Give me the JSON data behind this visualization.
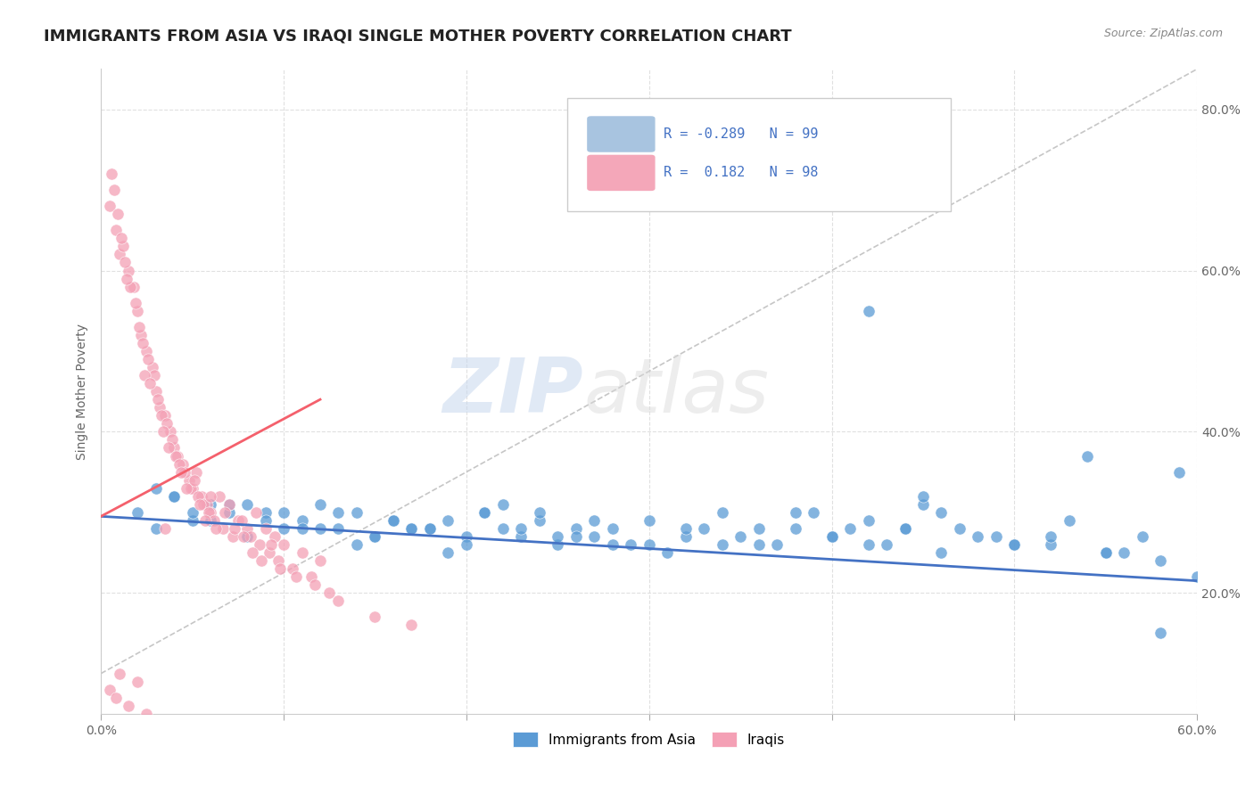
{
  "title": "IMMIGRANTS FROM ASIA VS IRAQI SINGLE MOTHER POVERTY CORRELATION CHART",
  "source_text": "Source: ZipAtlas.com",
  "ylabel": "Single Mother Poverty",
  "xlim": [
    0.0,
    0.6
  ],
  "ylim": [
    0.05,
    0.85
  ],
  "yticks": [
    0.2,
    0.4,
    0.6,
    0.8
  ],
  "yticklabels": [
    "20.0%",
    "40.0%",
    "60.0%",
    "80.0%"
  ],
  "blue_scatter_x": [
    0.02,
    0.03,
    0.04,
    0.05,
    0.06,
    0.07,
    0.08,
    0.09,
    0.1,
    0.11,
    0.12,
    0.13,
    0.14,
    0.15,
    0.16,
    0.17,
    0.18,
    0.19,
    0.2,
    0.21,
    0.22,
    0.23,
    0.24,
    0.25,
    0.26,
    0.27,
    0.28,
    0.3,
    0.32,
    0.34,
    0.36,
    0.38,
    0.4,
    0.42,
    0.44,
    0.46,
    0.48,
    0.5,
    0.52,
    0.55,
    0.57,
    0.59,
    0.04,
    0.06,
    0.08,
    0.1,
    0.12,
    0.14,
    0.16,
    0.18,
    0.2,
    0.22,
    0.24,
    0.26,
    0.28,
    0.3,
    0.32,
    0.34,
    0.36,
    0.38,
    0.4,
    0.42,
    0.44,
    0.46,
    0.5,
    0.52,
    0.55,
    0.58,
    0.03,
    0.05,
    0.07,
    0.09,
    0.11,
    0.13,
    0.15,
    0.17,
    0.19,
    0.21,
    0.23,
    0.25,
    0.27,
    0.29,
    0.31,
    0.33,
    0.35,
    0.37,
    0.39,
    0.41,
    0.43,
    0.45,
    0.47,
    0.49,
    0.53,
    0.56,
    0.42,
    0.54,
    0.58,
    0.45,
    0.6
  ],
  "blue_scatter_y": [
    0.3,
    0.28,
    0.32,
    0.29,
    0.31,
    0.3,
    0.27,
    0.3,
    0.28,
    0.29,
    0.31,
    0.28,
    0.3,
    0.27,
    0.29,
    0.28,
    0.28,
    0.29,
    0.27,
    0.3,
    0.28,
    0.27,
    0.29,
    0.26,
    0.28,
    0.27,
    0.28,
    0.26,
    0.27,
    0.26,
    0.28,
    0.3,
    0.27,
    0.26,
    0.28,
    0.25,
    0.27,
    0.26,
    0.26,
    0.25,
    0.27,
    0.35,
    0.32,
    0.29,
    0.31,
    0.3,
    0.28,
    0.26,
    0.29,
    0.28,
    0.26,
    0.31,
    0.3,
    0.27,
    0.26,
    0.29,
    0.28,
    0.3,
    0.26,
    0.28,
    0.27,
    0.29,
    0.28,
    0.3,
    0.26,
    0.27,
    0.25,
    0.24,
    0.33,
    0.3,
    0.31,
    0.29,
    0.28,
    0.3,
    0.27,
    0.28,
    0.25,
    0.3,
    0.28,
    0.27,
    0.29,
    0.26,
    0.25,
    0.28,
    0.27,
    0.26,
    0.3,
    0.28,
    0.26,
    0.31,
    0.28,
    0.27,
    0.29,
    0.25,
    0.55,
    0.37,
    0.15,
    0.32,
    0.22
  ],
  "pink_scatter_x": [
    0.005,
    0.008,
    0.01,
    0.012,
    0.015,
    0.018,
    0.02,
    0.022,
    0.025,
    0.028,
    0.03,
    0.032,
    0.035,
    0.038,
    0.04,
    0.042,
    0.045,
    0.048,
    0.05,
    0.052,
    0.055,
    0.058,
    0.06,
    0.065,
    0.07,
    0.075,
    0.08,
    0.085,
    0.09,
    0.095,
    0.1,
    0.11,
    0.12,
    0.007,
    0.009,
    0.011,
    0.013,
    0.016,
    0.019,
    0.021,
    0.023,
    0.026,
    0.029,
    0.031,
    0.033,
    0.036,
    0.039,
    0.041,
    0.043,
    0.046,
    0.049,
    0.051,
    0.053,
    0.056,
    0.059,
    0.062,
    0.067,
    0.072,
    0.077,
    0.082,
    0.087,
    0.092,
    0.097,
    0.105,
    0.115,
    0.006,
    0.014,
    0.024,
    0.027,
    0.034,
    0.037,
    0.044,
    0.047,
    0.054,
    0.057,
    0.063,
    0.068,
    0.073,
    0.078,
    0.083,
    0.088,
    0.093,
    0.098,
    0.107,
    0.117,
    0.125,
    0.13,
    0.15,
    0.17,
    0.06,
    0.035,
    0.01,
    0.02,
    0.005,
    0.008,
    0.015,
    0.025,
    0.04
  ],
  "pink_scatter_y": [
    0.68,
    0.65,
    0.62,
    0.63,
    0.6,
    0.58,
    0.55,
    0.52,
    0.5,
    0.48,
    0.45,
    0.43,
    0.42,
    0.4,
    0.38,
    0.37,
    0.36,
    0.34,
    0.33,
    0.35,
    0.32,
    0.31,
    0.3,
    0.32,
    0.31,
    0.29,
    0.28,
    0.3,
    0.28,
    0.27,
    0.26,
    0.25,
    0.24,
    0.7,
    0.67,
    0.64,
    0.61,
    0.58,
    0.56,
    0.53,
    0.51,
    0.49,
    0.47,
    0.44,
    0.42,
    0.41,
    0.39,
    0.37,
    0.36,
    0.35,
    0.33,
    0.34,
    0.32,
    0.31,
    0.3,
    0.29,
    0.28,
    0.27,
    0.29,
    0.27,
    0.26,
    0.25,
    0.24,
    0.23,
    0.22,
    0.72,
    0.59,
    0.47,
    0.46,
    0.4,
    0.38,
    0.35,
    0.33,
    0.31,
    0.29,
    0.28,
    0.3,
    0.28,
    0.27,
    0.25,
    0.24,
    0.26,
    0.23,
    0.22,
    0.21,
    0.2,
    0.19,
    0.17,
    0.16,
    0.32,
    0.28,
    0.1,
    0.09,
    0.08,
    0.07,
    0.06,
    0.05,
    0.04
  ],
  "blue_line_x": [
    0.0,
    0.6
  ],
  "blue_line_y": [
    0.295,
    0.215
  ],
  "pink_line_x": [
    0.0,
    0.12
  ],
  "pink_line_y": [
    0.295,
    0.44
  ],
  "diag_line_x": [
    0.0,
    0.6
  ],
  "diag_line_y": [
    0.1,
    0.85
  ],
  "watermark_zip": "ZIP",
  "watermark_atlas": "atlas",
  "bg_color": "#ffffff",
  "grid_color": "#dddddd",
  "blue_color": "#5b9bd5",
  "pink_color": "#f4a0b5",
  "blue_line_color": "#4472c4",
  "pink_line_color": "#f4606c",
  "title_fontsize": 13,
  "axis_fontsize": 10,
  "tick_fontsize": 10,
  "legend_box_text_blue": "R = -0.289   N = 99",
  "legend_box_text_pink": "R =  0.182   N = 98",
  "legend_box_color_blue": "#a8c4e0",
  "legend_box_color_pink": "#f4a7b9",
  "legend_text_color": "#4472c4"
}
